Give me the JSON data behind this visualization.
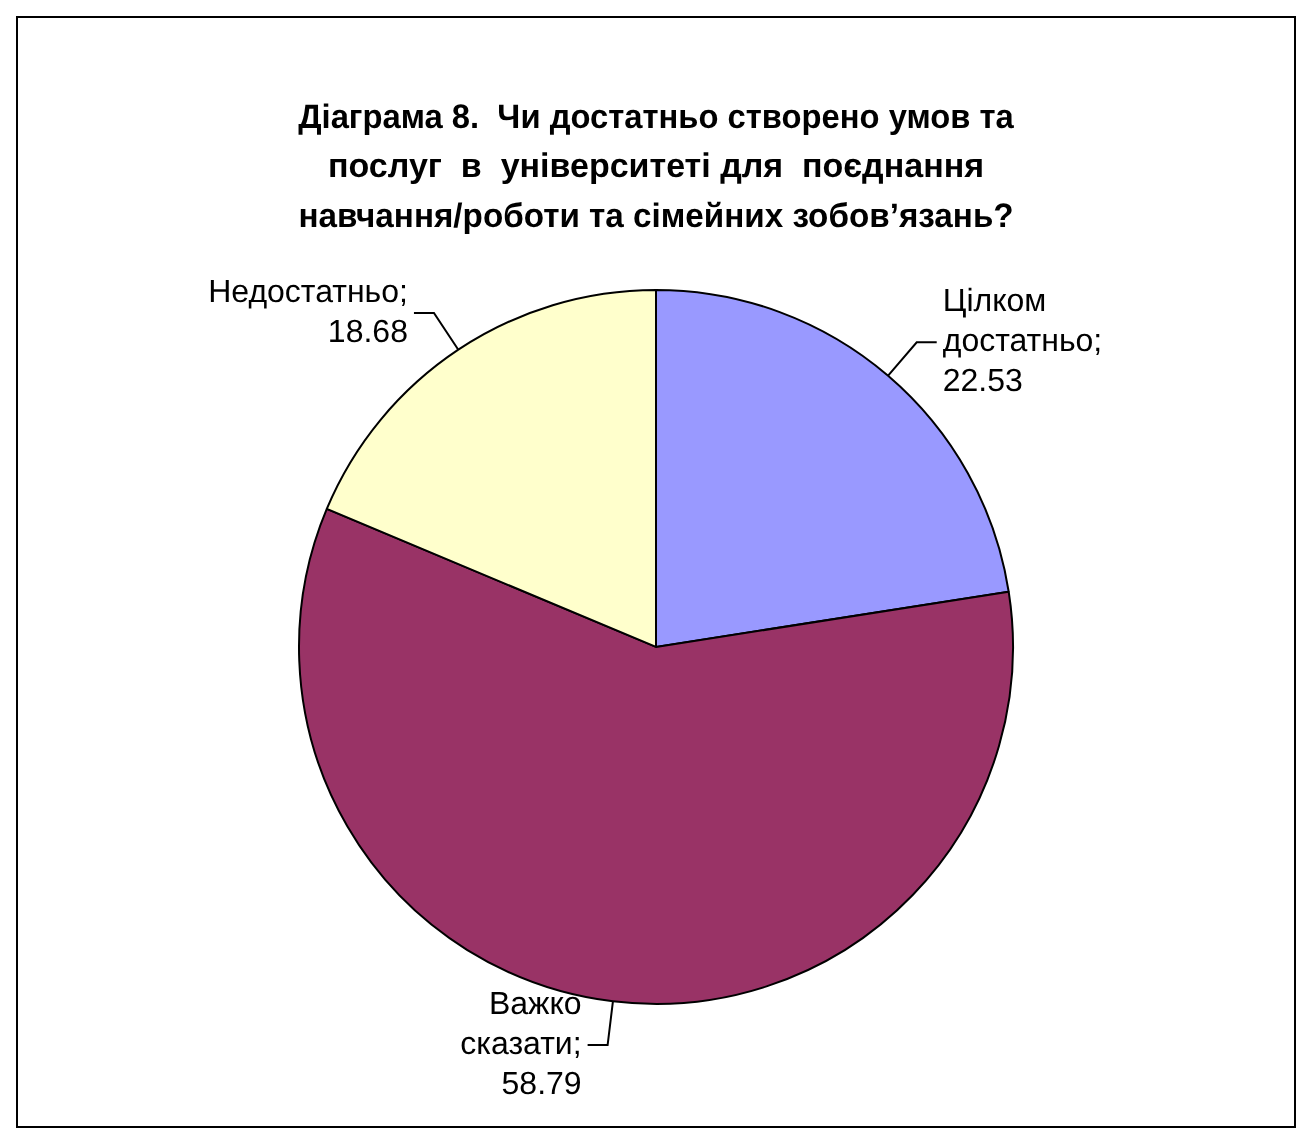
{
  "chart_data": {
    "type": "pie",
    "title": "Діаграма 8.  Чи достатньо створено умов та послуг  в  університеті для  поєднання навчання/роботи та сімейних зобов’язань?",
    "categories": [
      "Цілком достатньо",
      "Важко сказати",
      "Недостатньо"
    ],
    "values": [
      22.53,
      58.79,
      18.68
    ],
    "colors": [
      "#9999ff",
      "#993366",
      "#ffffcc"
    ],
    "value_labels": [
      "; 22.53",
      "; 58.79",
      "; 18.68"
    ],
    "legend": false
  }
}
